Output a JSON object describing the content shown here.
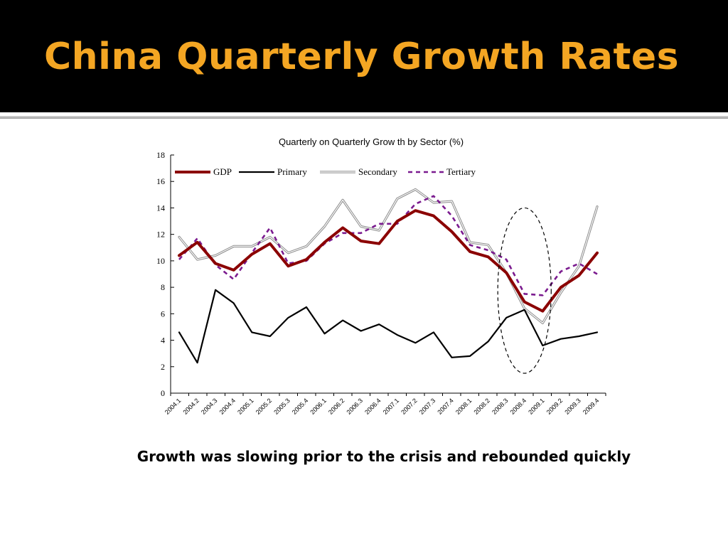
{
  "slide": {
    "title": "China Quarterly Growth Rates",
    "caption": "Growth was slowing prior to the crisis and rebounded quickly",
    "title_color": "#f4a623"
  },
  "chart_data": {
    "type": "line",
    "title": "Quarterly on Quarterly Grow th by Sector (%)",
    "xlabel": "",
    "ylabel": "",
    "ylim": [
      0,
      18
    ],
    "yticks": [
      0,
      2,
      4,
      6,
      8,
      10,
      12,
      14,
      16,
      18
    ],
    "grid": false,
    "legend_position": "top",
    "x": [
      "2004.1",
      "2004.2",
      "2004.3",
      "2004.4",
      "2005.1",
      "2005.2",
      "2005.3",
      "2005.4",
      "2006.1",
      "2006.2",
      "2006.3",
      "2006.4",
      "2007.1",
      "2007.2",
      "2007.3",
      "2007.4",
      "2008.1",
      "2008.2",
      "2008.3",
      "2008.4",
      "2009.1",
      "2009.2",
      "2009.3",
      "2009.4"
    ],
    "series": [
      {
        "name": "GDP",
        "color": "#8b0000",
        "style": "thick",
        "values": [
          10.4,
          11.4,
          9.8,
          9.3,
          10.5,
          11.3,
          9.6,
          10.1,
          11.4,
          12.5,
          11.5,
          11.3,
          13.0,
          13.8,
          13.4,
          12.2,
          10.7,
          10.3,
          9.1,
          6.9,
          6.2,
          8.0,
          8.9,
          10.6
        ]
      },
      {
        "name": "Primary",
        "color": "#000000",
        "style": "solid",
        "values": [
          4.6,
          2.3,
          7.8,
          6.8,
          4.6,
          4.3,
          5.7,
          6.5,
          4.5,
          5.5,
          4.7,
          5.2,
          4.4,
          3.8,
          4.6,
          2.7,
          2.8,
          3.9,
          5.7,
          6.3,
          3.6,
          4.1,
          4.3,
          4.6
        ]
      },
      {
        "name": "Secondary",
        "color": "#8c8c8c",
        "style": "double",
        "values": [
          11.8,
          10.1,
          10.4,
          11.1,
          11.1,
          11.8,
          10.6,
          11.1,
          12.6,
          14.6,
          12.6,
          12.3,
          14.7,
          15.4,
          14.4,
          14.5,
          11.4,
          11.2,
          9.1,
          6.4,
          5.3,
          7.6,
          9.6,
          14.1
        ]
      },
      {
        "name": "Tertiary",
        "color": "#7b1b8f",
        "style": "dashed",
        "values": [
          10.1,
          11.7,
          9.7,
          8.6,
          10.6,
          12.5,
          9.8,
          10.0,
          11.3,
          12.1,
          12.1,
          12.8,
          12.8,
          14.3,
          14.9,
          13.4,
          11.2,
          10.8,
          10.1,
          7.5,
          7.4,
          9.2,
          9.8,
          9.0
        ]
      }
    ],
    "annotation": {
      "type": "ellipse",
      "style": "dashed",
      "highlight_x_range": [
        "2008.3",
        "2009.1"
      ],
      "y_range": [
        1.5,
        14.0
      ]
    }
  }
}
